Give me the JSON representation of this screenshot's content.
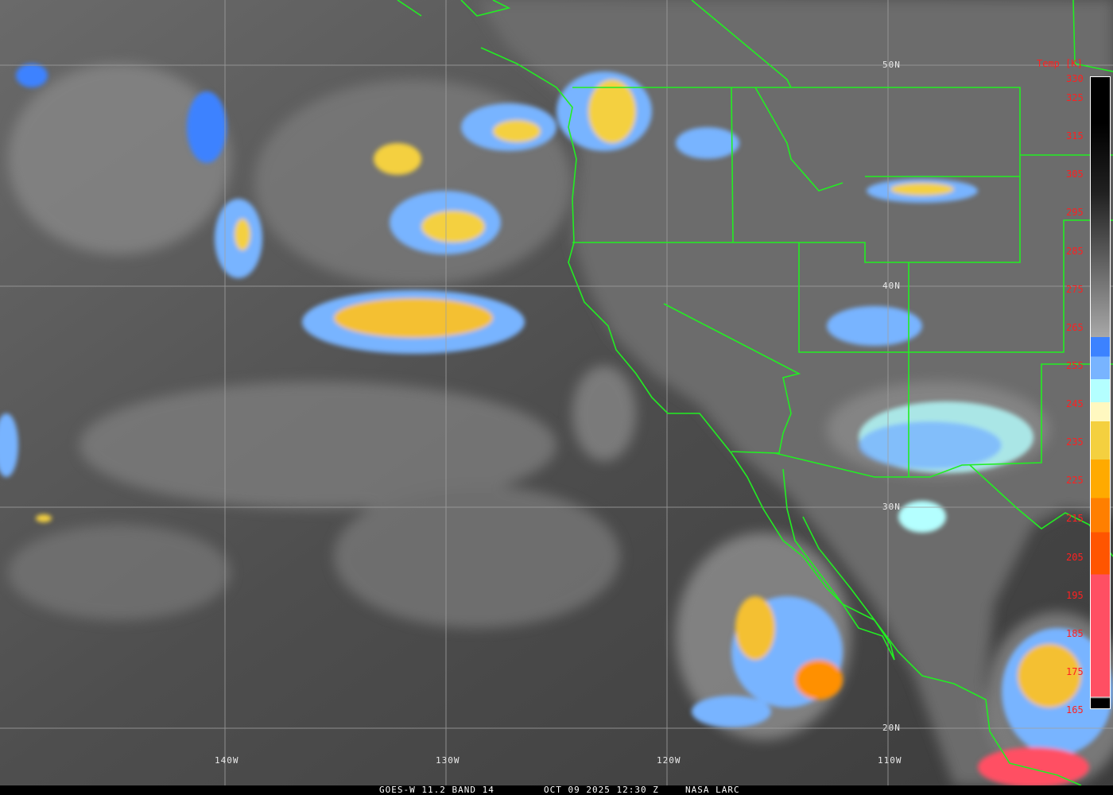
{
  "image": {
    "caption_left": "GOES-W 11.2 BAND 14",
    "caption_center": "OCT 09 2025 12:30 Z",
    "caption_right": "NASA LARC"
  },
  "grid": {
    "latitudes": [
      "50N",
      "40N",
      "30N",
      "20N"
    ],
    "longitudes": [
      "140W",
      "130W",
      "120W",
      "110W"
    ]
  },
  "colorbar": {
    "title": "Temp [K]",
    "ticks": [
      "330",
      "325",
      "315",
      "305",
      "295",
      "285",
      "275",
      "265",
      "255",
      "245",
      "235",
      "225",
      "215",
      "205",
      "195",
      "185",
      "175",
      "165"
    ],
    "range_K": [
      165,
      330
    ],
    "colors": {
      "cold_pink": "#ff4f63",
      "red_orange": "#ff5500",
      "orange": "#ff7f00",
      "amber": "#ffaa00",
      "yellow": "#f4d03f",
      "pale_yellow": "#fff8c0",
      "cyan": "#b4ffff",
      "light_blue": "#78b4ff",
      "blue": "#3c82ff",
      "border_lines": "#22ee22",
      "label_red": "#ff2020"
    }
  }
}
